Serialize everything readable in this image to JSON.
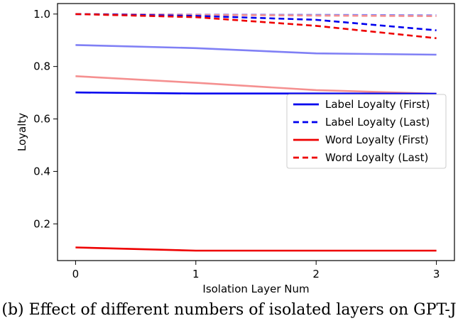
{
  "caption": "(b) Effect of different numbers of isolated layers on GPT-J",
  "chart_data": {
    "type": "line",
    "xlabel": "Isolation Layer Num",
    "ylabel": "Loyalty",
    "xlim": [
      -0.15,
      3.15
    ],
    "ylim": [
      0.06,
      1.04
    ],
    "xticks": [
      0,
      1,
      2,
      3
    ],
    "yticks": [
      0.2,
      0.4,
      0.6,
      0.8,
      1.0
    ],
    "ytick_labels": [
      "0.2",
      "0.4",
      "0.6",
      "0.8",
      "1.0"
    ],
    "x": [
      0,
      1,
      2,
      3
    ],
    "grid": false,
    "legend_position": "center-right",
    "series": [
      {
        "name": "Label Loyalty (First)",
        "values": [
          0.701,
          0.697,
          0.697,
          0.696
        ],
        "color": "#0000ee",
        "style": "solid",
        "faded": false
      },
      {
        "name": "Label Loyalty (Last)",
        "values": [
          1.0,
          0.993,
          0.978,
          0.938
        ],
        "color": "#0000ee",
        "style": "dashed",
        "faded": false
      },
      {
        "name": "Word Loyalty (First)",
        "values": [
          0.11,
          0.098,
          0.098,
          0.098
        ],
        "color": "#ee0000",
        "style": "solid",
        "faded": false
      },
      {
        "name": "Word Loyalty (Last)",
        "values": [
          1.0,
          0.988,
          0.955,
          0.908
        ],
        "color": "#ee0000",
        "style": "dashed",
        "faded": false
      },
      {
        "values": [
          0.882,
          0.87,
          0.85,
          0.845
        ],
        "color": "#8080f5",
        "style": "solid",
        "faded": true
      },
      {
        "values": [
          0.763,
          0.738,
          0.71,
          0.696
        ],
        "color": "#f59090",
        "style": "solid",
        "faded": true
      },
      {
        "values": [
          1.0,
          0.998,
          0.997,
          0.995
        ],
        "color": "#8080f5",
        "style": "dashed",
        "faded": true
      },
      {
        "values": [
          1.0,
          0.997,
          0.994,
          0.992
        ],
        "color": "#f59090",
        "style": "dashed",
        "faded": true
      }
    ],
    "legend": [
      {
        "label": "Label Loyalty (First)",
        "color": "#0000ee",
        "style": "solid"
      },
      {
        "label": "Label Loyalty (Last)",
        "color": "#0000ee",
        "style": "dashed"
      },
      {
        "label": "Word Loyalty (First)",
        "color": "#ee0000",
        "style": "solid"
      },
      {
        "label": "Word Loyalty (Last)",
        "color": "#ee0000",
        "style": "dashed"
      }
    ]
  }
}
